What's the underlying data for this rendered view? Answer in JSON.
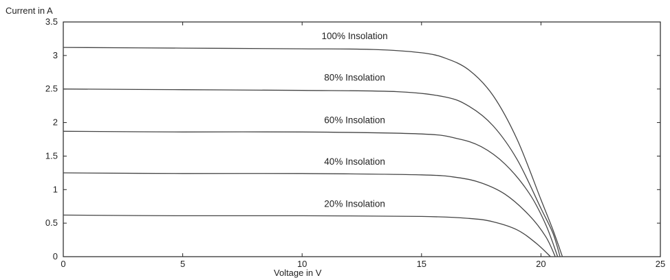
{
  "chart_data": {
    "type": "line",
    "title": "",
    "xlabel": "Voltage in V",
    "ylabel": "Current in A",
    "xlim": [
      0,
      25
    ],
    "ylim": [
      0,
      3.5
    ],
    "x_ticks": [
      "0",
      "5",
      "10",
      "15",
      "20",
      "25"
    ],
    "y_ticks": [
      "0",
      "0.5",
      "1",
      "1.5",
      "2",
      "2.5",
      "3",
      "3.5"
    ],
    "grid": false,
    "legend": "none",
    "series": [
      {
        "label": "100% Insolation",
        "isc": 3.12,
        "points": [
          [
            0,
            3.12
          ],
          [
            5,
            3.11
          ],
          [
            10,
            3.1
          ],
          [
            13,
            3.09
          ],
          [
            15,
            3.04
          ],
          [
            16,
            2.96
          ],
          [
            17,
            2.78
          ],
          [
            18,
            2.4
          ],
          [
            19,
            1.75
          ],
          [
            20,
            0.85
          ],
          [
            20.5,
            0.4
          ],
          [
            20.9,
            0
          ]
        ]
      },
      {
        "label": "80% Insolation",
        "isc": 2.5,
        "points": [
          [
            0,
            2.5
          ],
          [
            5,
            2.49
          ],
          [
            10,
            2.48
          ],
          [
            14,
            2.46
          ],
          [
            16,
            2.38
          ],
          [
            17,
            2.24
          ],
          [
            18,
            1.95
          ],
          [
            19,
            1.45
          ],
          [
            20,
            0.72
          ],
          [
            20.5,
            0.35
          ],
          [
            20.8,
            0
          ]
        ]
      },
      {
        "label": "60% Insolation",
        "isc": 1.87,
        "points": [
          [
            0,
            1.87
          ],
          [
            5,
            1.86
          ],
          [
            10,
            1.86
          ],
          [
            15,
            1.83
          ],
          [
            16.5,
            1.76
          ],
          [
            17.5,
            1.64
          ],
          [
            18.5,
            1.38
          ],
          [
            19.5,
            0.95
          ],
          [
            20.2,
            0.48
          ],
          [
            20.7,
            0
          ]
        ]
      },
      {
        "label": "40% Insolation",
        "isc": 1.25,
        "points": [
          [
            0,
            1.25
          ],
          [
            5,
            1.24
          ],
          [
            10,
            1.24
          ],
          [
            15,
            1.22
          ],
          [
            16.5,
            1.18
          ],
          [
            17.5,
            1.1
          ],
          [
            18.5,
            0.93
          ],
          [
            19.5,
            0.62
          ],
          [
            20.2,
            0.3
          ],
          [
            20.6,
            0
          ]
        ]
      },
      {
        "label": "20% Insolation",
        "isc": 0.62,
        "points": [
          [
            0,
            0.62
          ],
          [
            5,
            0.61
          ],
          [
            10,
            0.61
          ],
          [
            15,
            0.6
          ],
          [
            17,
            0.57
          ],
          [
            18,
            0.52
          ],
          [
            19,
            0.4
          ],
          [
            19.8,
            0.2
          ],
          [
            20.4,
            0
          ]
        ]
      }
    ]
  }
}
